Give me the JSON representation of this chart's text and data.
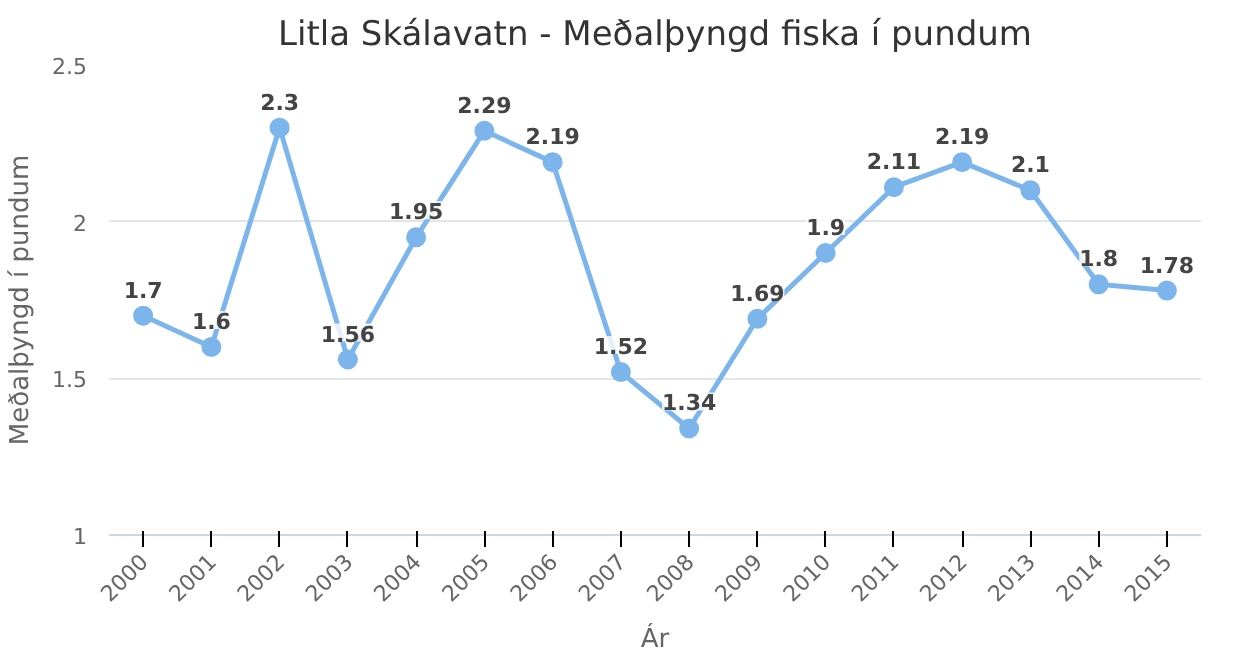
{
  "chart_data": {
    "type": "line",
    "title": "Litla Skálavatn - Meðalþyngd fiska í pundum",
    "xlabel": "Ár",
    "ylabel": "Meðalþyngd í pundum",
    "categories": [
      "2000",
      "2001",
      "2002",
      "2003",
      "2004",
      "2005",
      "2006",
      "2007",
      "2008",
      "2009",
      "2010",
      "2011",
      "2012",
      "2013",
      "2014",
      "2015"
    ],
    "series": [
      {
        "color": "#7cb5ec",
        "values": [
          1.7,
          1.6,
          2.3,
          1.56,
          1.95,
          2.29,
          2.19,
          1.52,
          1.34,
          1.69,
          1.9,
          2.11,
          2.19,
          2.1,
          1.8,
          1.78
        ]
      }
    ],
    "ylim": [
      1,
      2.5
    ],
    "yticks": [
      1,
      1.5,
      2,
      2.5
    ],
    "grid": "y",
    "marker": "circle",
    "line_style": "solid",
    "data_labels": true
  }
}
